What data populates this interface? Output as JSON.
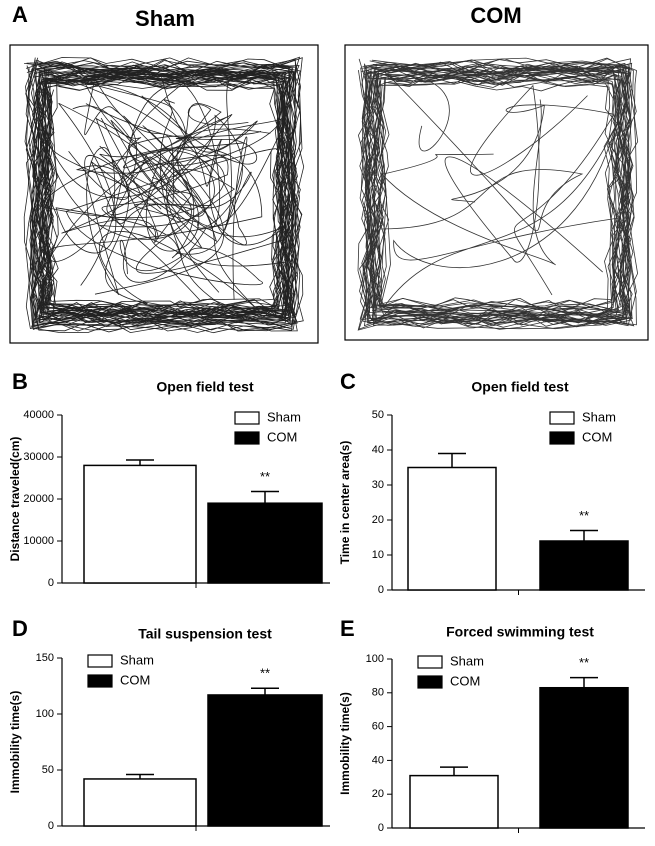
{
  "panel_a": {
    "label": "A",
    "titles": [
      "Sham",
      "COM"
    ]
  },
  "chart_data": [
    {
      "type": "bar",
      "panel": "B",
      "title": "Open field test",
      "y_label": "Distance traveled(cm)",
      "ylim": [
        0,
        40000
      ],
      "yticks": [
        0,
        10000,
        20000,
        30000,
        40000
      ],
      "legend": "top-right",
      "series": [
        {
          "name": "Sham",
          "color": "#ffffff",
          "values": [
            28000
          ],
          "errors": [
            1300
          ]
        },
        {
          "name": "COM",
          "color": "#000000",
          "values": [
            19000
          ],
          "errors": [
            2800
          ],
          "significance": "**"
        }
      ]
    },
    {
      "type": "bar",
      "panel": "C",
      "title": "Open field test",
      "y_label": "Time in center area(s)",
      "ylim": [
        0,
        50
      ],
      "yticks": [
        0,
        10,
        20,
        30,
        40,
        50
      ],
      "legend": "top-right",
      "series": [
        {
          "name": "Sham",
          "color": "#ffffff",
          "values": [
            35
          ],
          "errors": [
            4
          ]
        },
        {
          "name": "COM",
          "color": "#000000",
          "values": [
            14
          ],
          "errors": [
            3
          ],
          "significance": "**"
        }
      ]
    },
    {
      "type": "bar",
      "panel": "D",
      "title": "Tail suspension test",
      "y_label": "Immobility time(s)",
      "ylim": [
        0,
        150
      ],
      "yticks": [
        0,
        50,
        100,
        150
      ],
      "legend": "top-left",
      "series": [
        {
          "name": "Sham",
          "color": "#ffffff",
          "values": [
            42
          ],
          "errors": [
            4
          ]
        },
        {
          "name": "COM",
          "color": "#000000",
          "values": [
            117
          ],
          "errors": [
            6
          ],
          "significance": "**"
        }
      ]
    },
    {
      "type": "bar",
      "panel": "E",
      "title": "Forced swimming test",
      "y_label": "Immobility time(s)",
      "ylim": [
        0,
        100
      ],
      "yticks": [
        0,
        20,
        40,
        60,
        80,
        100
      ],
      "legend": "top-left",
      "series": [
        {
          "name": "Sham",
          "color": "#ffffff",
          "values": [
            31
          ],
          "errors": [
            5
          ]
        },
        {
          "name": "COM",
          "color": "#000000",
          "values": [
            83
          ],
          "errors": [
            6
          ],
          "significance": "**"
        }
      ]
    }
  ]
}
